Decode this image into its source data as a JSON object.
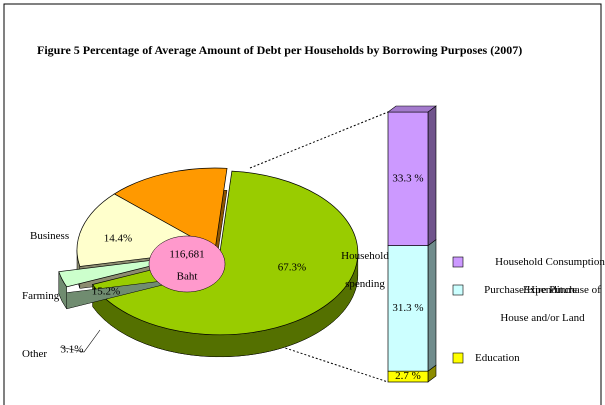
{
  "chart_data": [
    {
      "type": "pie",
      "title": "Figure 5   Percentage of Average Amount of Debt per Households by Borrowing Purposes  (2007)",
      "categories": [
        "Household spending",
        "Other",
        "Farming",
        "Business"
      ],
      "values": [
        67.3,
        3.1,
        15.2,
        14.4
      ],
      "value_labels": [
        "67.3%",
        "3.1%",
        "15.2%",
        "14.4%"
      ],
      "colors": [
        "#99cc00",
        "#ccffcc",
        "#ffffcc",
        "#ff9900"
      ],
      "annotation": [
        "116,681",
        "Baht"
      ]
    },
    {
      "type": "bar",
      "stacked": true,
      "series": [
        {
          "name": "Household Consumption Expenditure",
          "color": "#cc99ff",
          "values": [
            33.3
          ],
          "value_labels": [
            "33.3 %"
          ]
        },
        {
          "name": "Purchase/Hire Purchase of House and/or Land",
          "color": "#ccffff",
          "values": [
            31.3
          ],
          "value_labels": [
            "31.3 %"
          ]
        },
        {
          "name": "Education",
          "color": "#ffff00",
          "values": [
            2.7
          ],
          "value_labels": [
            "2.7 %"
          ]
        }
      ]
    }
  ]
}
